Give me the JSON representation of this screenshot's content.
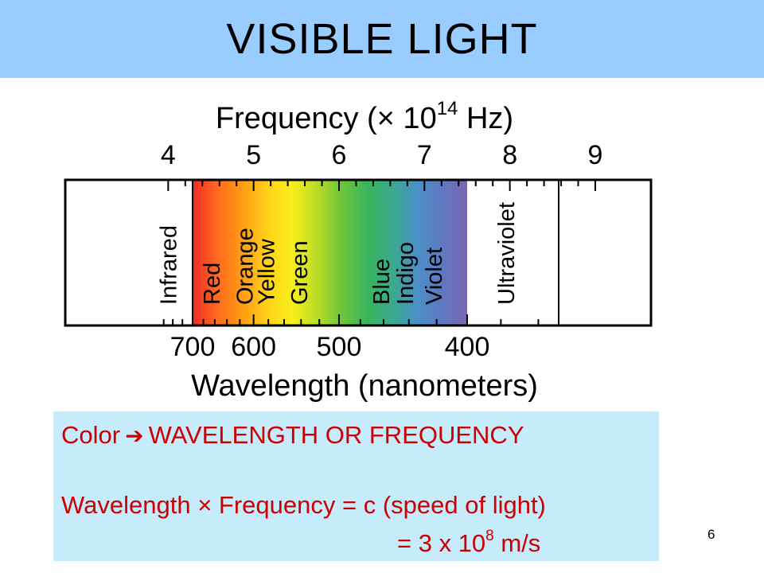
{
  "title": "VISIBLE LIGHT",
  "chart_data": {
    "type": "spectrum-diagram",
    "top_axis": {
      "label_prefix": "Frequency (",
      "label_times": "×",
      "label_base": " 10",
      "label_exponent": "14",
      "label_suffix": " Hz)",
      "ticks": [
        {
          "value": 4,
          "label": "4"
        },
        {
          "value": 5,
          "label": "5"
        },
        {
          "value": 6,
          "label": "6"
        },
        {
          "value": 7,
          "label": "7"
        },
        {
          "value": 8,
          "label": "8"
        },
        {
          "value": 9,
          "label": "9"
        }
      ]
    },
    "bottom_axis": {
      "label": "Wavelength (nanometers)",
      "ticks": [
        {
          "value": 700,
          "label": "700"
        },
        {
          "value": 600,
          "label": "600"
        },
        {
          "value": 500,
          "label": "500"
        },
        {
          "value": 400,
          "label": "400"
        }
      ]
    },
    "visible_range_nm": [
      700,
      400
    ],
    "bands": [
      {
        "label": "Infrared",
        "wavelength_nm": 750
      },
      {
        "label": "Red",
        "wavelength_nm": 665
      },
      {
        "label": "Orange",
        "wavelength_nm": 613
      },
      {
        "label": "Yellow",
        "wavelength_nm": 583
      },
      {
        "label": "Green",
        "wavelength_nm": 542
      },
      {
        "label": "Blue",
        "wavelength_nm": 462
      },
      {
        "label": "Indigo",
        "wavelength_nm": 443
      },
      {
        "label": "Violet",
        "wavelength_nm": 422
      },
      {
        "label": "Ultraviolet",
        "wavelength_nm": 377
      }
    ],
    "gradient_colors": [
      "#f02a2a",
      "#ff6a1e",
      "#ff9d14",
      "#ffd21a",
      "#f7ef1a",
      "#b8dc28",
      "#6cc43a",
      "#38b55a",
      "#3aa98e",
      "#4a90c6",
      "#5f78c2",
      "#7868b0"
    ]
  },
  "info": {
    "line1_color": "Color",
    "line1_rest": "WAVELENGTH OR FREQUENCY",
    "line2_left": "Wavelength",
    "line2_times": "×",
    "line2_right": "Frequency = c (speed of light)",
    "line3_prefix": "= 3 x 10",
    "line3_exponent": "8",
    "line3_suffix": " m/s"
  },
  "page_number": "6"
}
